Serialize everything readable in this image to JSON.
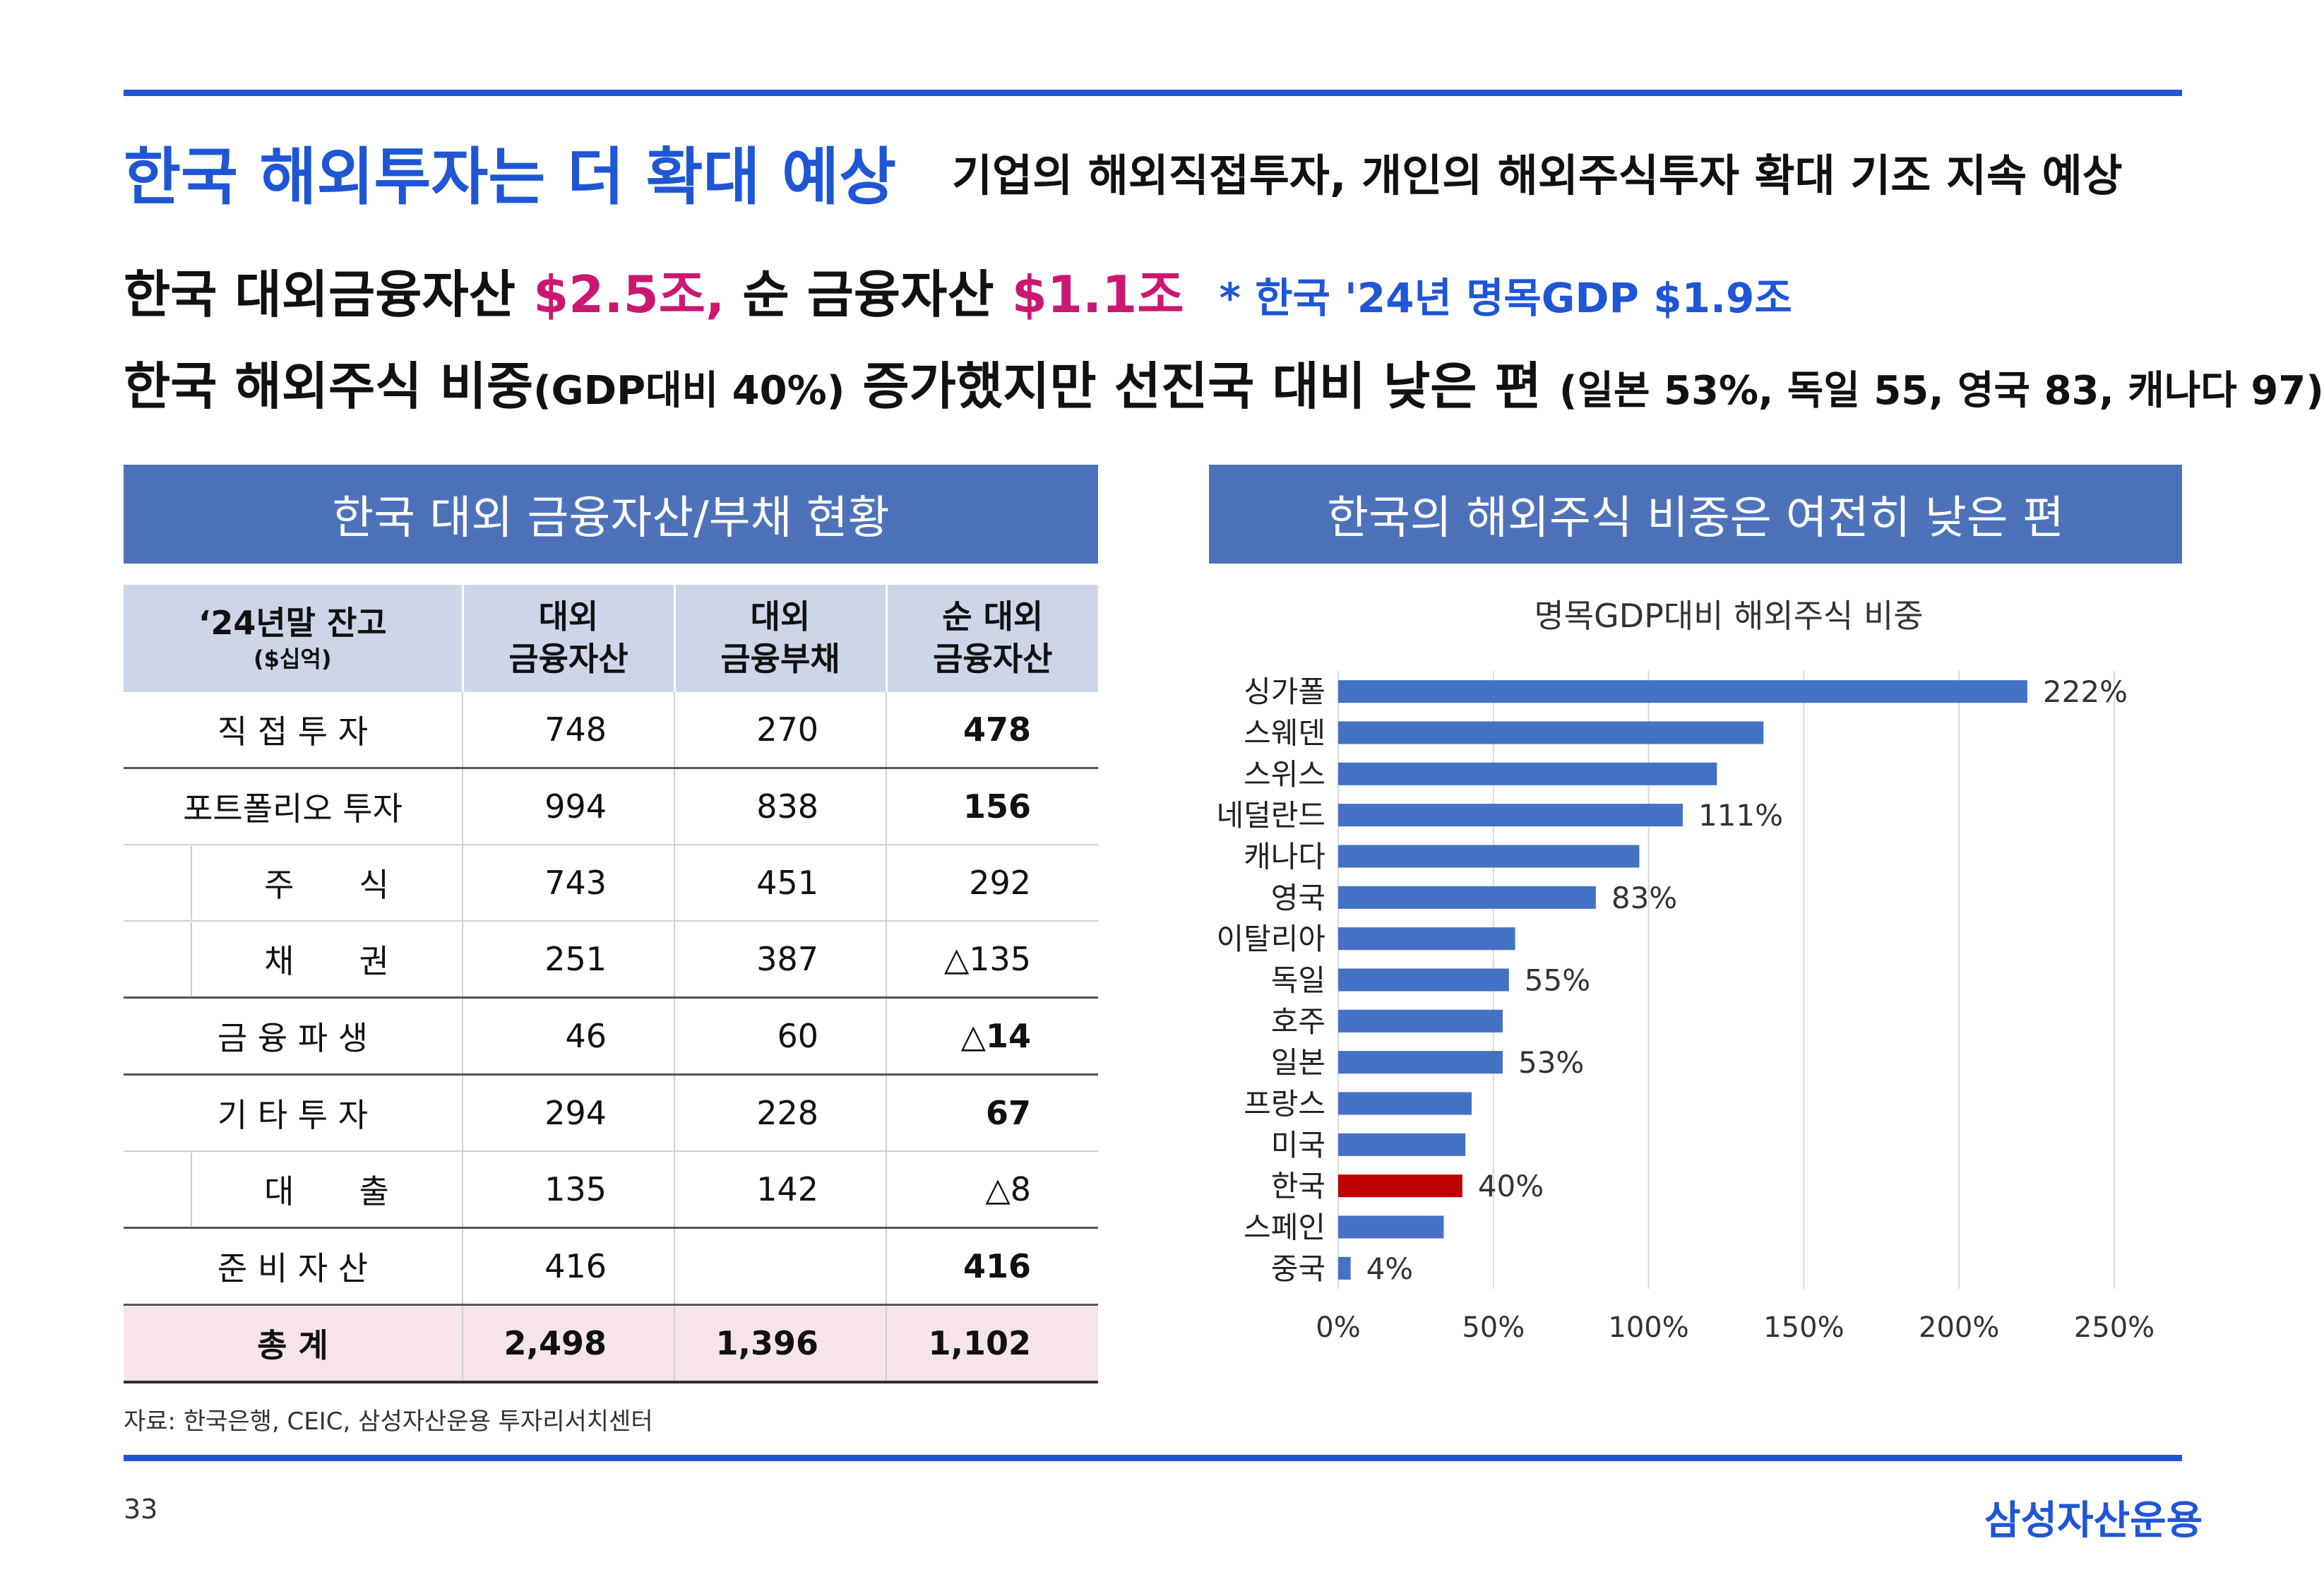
{
  "header": {
    "title": "한국 해외투자는 더 확대 예상",
    "subtitle": "기업의 해외직접투자, 개인의 해외주식투자 확대 기조 지속 예상"
  },
  "highlights": {
    "line1_a": "한국 대외금융자산 ",
    "line1_b": "$2.5조,",
    "line1_c": " 순 금융자산 ",
    "line1_d": "$1.1조",
    "line1_note": "* 한국 '24년 명목GDP $1.9조",
    "line2_a": "한국 해외주식 비중",
    "line2_b": "(GDP대비 40%)",
    "line2_c": " 증가했지만 선진국 대비 낮은 편 ",
    "line2_d": "(일본 53%, 독일 55, 영국 83, 캐나다 97)"
  },
  "table_panel": {
    "title": "한국 대외 금융자산/부채 현황",
    "col_header_1_line1": "‘24년말 잔고",
    "col_header_1_line2": "($십억)",
    "col_header_2_line1": "대외",
    "col_header_2_line2": "금융자산",
    "col_header_3_line1": "대외",
    "col_header_3_line2": "금융부채",
    "col_header_4_line1": "순 대외",
    "col_header_4_line2": "금융자산",
    "rows": [
      {
        "label": "직 접 투 자",
        "assets": "748",
        "liabilities": "270",
        "net": "478"
      },
      {
        "label": "포트폴리오 투자",
        "assets": "994",
        "liabilities": "838",
        "net": "156"
      },
      {
        "label": "주　　식",
        "assets": "743",
        "liabilities": "451",
        "net": "292"
      },
      {
        "label": "채　　권",
        "assets": "251",
        "liabilities": "387",
        "net": "△135"
      },
      {
        "label": "금 융 파 생",
        "assets": "46",
        "liabilities": "60",
        "net": "△14"
      },
      {
        "label": "기 타 투 자",
        "assets": "294",
        "liabilities": "228",
        "net": "67"
      },
      {
        "label": "대　　출",
        "assets": "135",
        "liabilities": "142",
        "net": "△8"
      },
      {
        "label": "준 비 자 산",
        "assets": "416",
        "liabilities": "",
        "net": "416"
      }
    ],
    "total": {
      "label": "총 계",
      "assets": "2,498",
      "liabilities": "1,396",
      "net": "1,102"
    }
  },
  "chart_panel": {
    "title": "한국의 해외주식 비중은 여전히 낮은 편"
  },
  "chart_data": {
    "type": "bar",
    "orientation": "horizontal",
    "title": "명목GDP대비 해외주식 비중",
    "categories": [
      "싱가폴",
      "스웨덴",
      "스위스",
      "네덜란드",
      "캐나다",
      "영국",
      "이탈리아",
      "독일",
      "호주",
      "일본",
      "프랑스",
      "미국",
      "한국",
      "스페인",
      "중국"
    ],
    "values": [
      222,
      137,
      122,
      111,
      97,
      83,
      57,
      55,
      53,
      53,
      43,
      41,
      40,
      34,
      4
    ],
    "data_labels": [
      "222%",
      "",
      "",
      "111%",
      "",
      "83%",
      "",
      "55%",
      "",
      "53%",
      "",
      "",
      "40%",
      "",
      "4%"
    ],
    "highlight": "한국",
    "bar_color": "#4472c4",
    "highlight_color": "#c00000",
    "xlim": [
      0,
      250
    ],
    "xticks": [
      0,
      50,
      100,
      150,
      200,
      250
    ],
    "xtick_labels": [
      "0%",
      "50%",
      "100%",
      "150%",
      "200%",
      "250%"
    ],
    "grid": true
  },
  "footer": {
    "source": "자료: 한국은행, CEIC, 삼성자산운용 투자리서치센터",
    "page": "33",
    "brand": "삼성자산운용"
  }
}
